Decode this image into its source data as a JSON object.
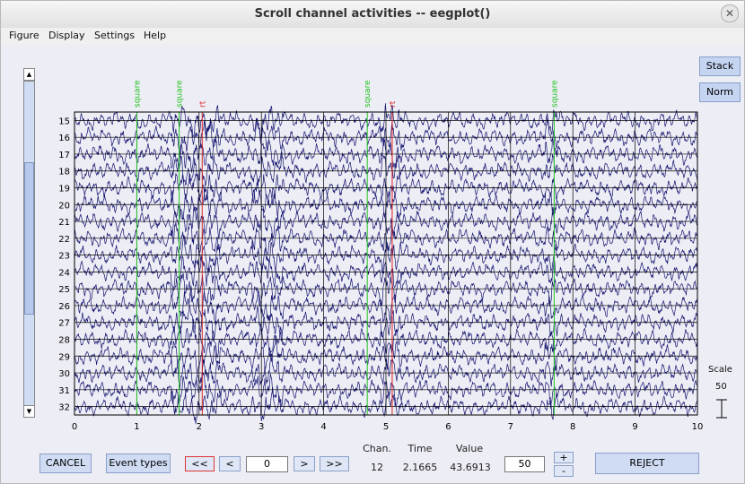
{
  "window": {
    "title": "Scroll channel activities -- eegplot()",
    "close_glyph": "✕"
  },
  "menu": {
    "items": [
      "Figure",
      "Display",
      "Settings",
      "Help"
    ],
    "toolbar_arrow": "↘"
  },
  "side_buttons": {
    "stack": "Stack",
    "norm": "Norm"
  },
  "scale": {
    "label": "Scale",
    "value": "50"
  },
  "chart_data": {
    "type": "line",
    "xlim": [
      0,
      10
    ],
    "x_ticks": [
      "0",
      "1",
      "2",
      "3",
      "4",
      "5",
      "6",
      "7",
      "8",
      "9",
      "10"
    ],
    "channels": [
      "15",
      "16",
      "17",
      "18",
      "19",
      "20",
      "21",
      "22",
      "23",
      "24",
      "25",
      "26",
      "27",
      "28",
      "29",
      "30",
      "31",
      "32"
    ],
    "grid": true,
    "trace_color": "#12126e",
    "events": [
      {
        "x": 1.0,
        "label": "square",
        "color": "#22c422"
      },
      {
        "x": 1.68,
        "label": "square",
        "color": "#22c422"
      },
      {
        "x": 2.05,
        "label": "rt",
        "color": "#dd2222"
      },
      {
        "x": 4.7,
        "label": "square",
        "color": "#22c422"
      },
      {
        "x": 5.1,
        "label": "rt",
        "color": "#dd2222"
      },
      {
        "x": 7.7,
        "label": "square",
        "color": "#22c422"
      }
    ]
  },
  "controls": {
    "cancel": "CANCEL",
    "event_types": "Event types",
    "first": "<<",
    "prev": "<",
    "position": "0",
    "next": ">",
    "last": ">>",
    "chan_label": "Chan.",
    "time_label": "Time",
    "value_label": "Value",
    "chan_value": "12",
    "time_value": "2.1665",
    "value_value": "43.6913",
    "scale_input": "50",
    "plus": "+",
    "minus": "-",
    "reject": "REJECT"
  }
}
